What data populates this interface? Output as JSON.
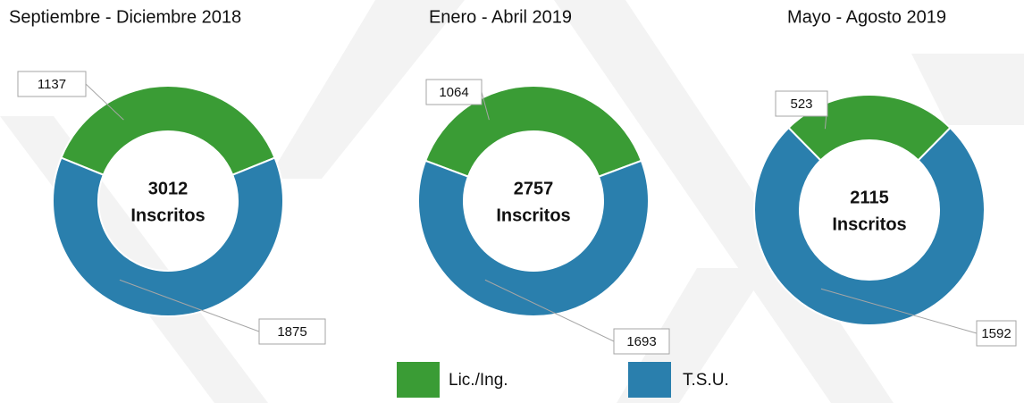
{
  "chart_data": [
    {
      "type": "donut",
      "title": "Septiembre - Diciembre 2018",
      "categories": [
        "Lic./Ing.",
        "T.S.U."
      ],
      "values": [
        1137,
        1875
      ],
      "colors": [
        "#3a9c35",
        "#2a7fad"
      ],
      "total": 3012,
      "total_label": "Inscritos",
      "legend": "bottom"
    },
    {
      "type": "donut",
      "title": "Enero - Abril 2019",
      "categories": [
        "Lic./Ing.",
        "T.S.U."
      ],
      "values": [
        1064,
        1693
      ],
      "colors": [
        "#3a9c35",
        "#2a7fad"
      ],
      "total": 2757,
      "total_label": "Inscritos"
    },
    {
      "type": "donut",
      "title": "Mayo - Agosto 2019",
      "categories": [
        "Lic./Ing.",
        "T.S.U."
      ],
      "values": [
        523,
        1592
      ],
      "colors": [
        "#3a9c35",
        "#2a7fad"
      ],
      "total": 2115,
      "total_label": "Inscritos"
    }
  ]
}
